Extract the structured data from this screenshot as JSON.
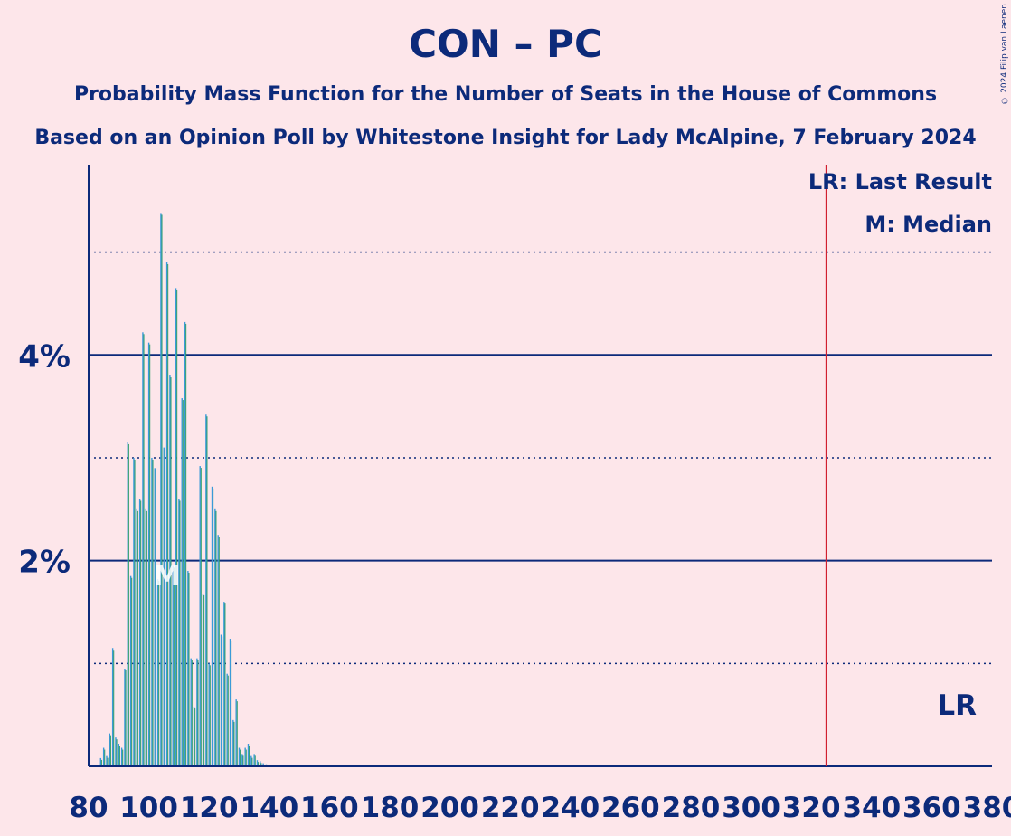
{
  "header": {
    "title": "CON – PC",
    "subtitle1": "Probability Mass Function for the Number of Seats in the House of Commons",
    "subtitle2": "Based on an Opinion Poll by Whitestone Insight for Lady McAlpine, 7 February 2024",
    "copyright": "© 2024 Filip van Laenen"
  },
  "legend": {
    "last_result": "LR: Last Result",
    "median": "M: Median",
    "lr_marker": "LR",
    "median_marker": "M"
  },
  "colors": {
    "background": "#fde6ea",
    "text": "#0c2a7a",
    "bar_primary": "#3a9ad9",
    "bar_secondary": "#2e9e6a",
    "last_result_line": "#d11f2f"
  },
  "chart_data": {
    "type": "bar",
    "xlim": [
      80,
      380
    ],
    "ylim": [
      0,
      5.85
    ],
    "x_ticks": [
      "80",
      "100",
      "120",
      "140",
      "160",
      "180",
      "200",
      "220",
      "240",
      "260",
      "280",
      "300",
      "320",
      "340",
      "360",
      "380"
    ],
    "y_ticks_labeled": [
      {
        "value": 2,
        "label": "2%"
      },
      {
        "value": 4,
        "label": "4%"
      }
    ],
    "y_gridlines_solid": [
      2,
      4
    ],
    "y_gridlines_dotted": [
      1,
      3,
      5
    ],
    "last_result": 325,
    "median": 106,
    "seats": [
      84,
      85,
      86,
      87,
      88,
      89,
      90,
      91,
      92,
      93,
      94,
      95,
      96,
      97,
      98,
      99,
      100,
      101,
      102,
      103,
      104,
      105,
      106,
      107,
      108,
      109,
      110,
      111,
      112,
      113,
      114,
      115,
      116,
      117,
      118,
      119,
      120,
      121,
      122,
      123,
      124,
      125,
      126,
      127,
      128,
      129,
      130,
      131,
      132,
      133,
      134,
      135,
      136,
      137,
      138,
      139,
      140,
      141,
      142,
      143
    ],
    "values": [
      0.08,
      0.18,
      0.1,
      0.32,
      1.15,
      0.28,
      0.22,
      0.18,
      0.95,
      3.15,
      1.85,
      3.0,
      2.5,
      2.6,
      4.22,
      2.5,
      4.12,
      3.0,
      2.9,
      1.82,
      5.38,
      3.1,
      4.9,
      3.8,
      1.95,
      4.65,
      2.6,
      3.58,
      4.32,
      1.9,
      1.05,
      0.58,
      1.05,
      2.92,
      1.68,
      3.42,
      1.0,
      2.72,
      2.5,
      2.25,
      1.28,
      1.6,
      0.9,
      1.24,
      0.45,
      0.65,
      0.18,
      0.12,
      0.18,
      0.22,
      0.1,
      0.12,
      0.06,
      0.05,
      0.03,
      0.02,
      0.01,
      0.01,
      0.005,
      0.003
    ]
  }
}
